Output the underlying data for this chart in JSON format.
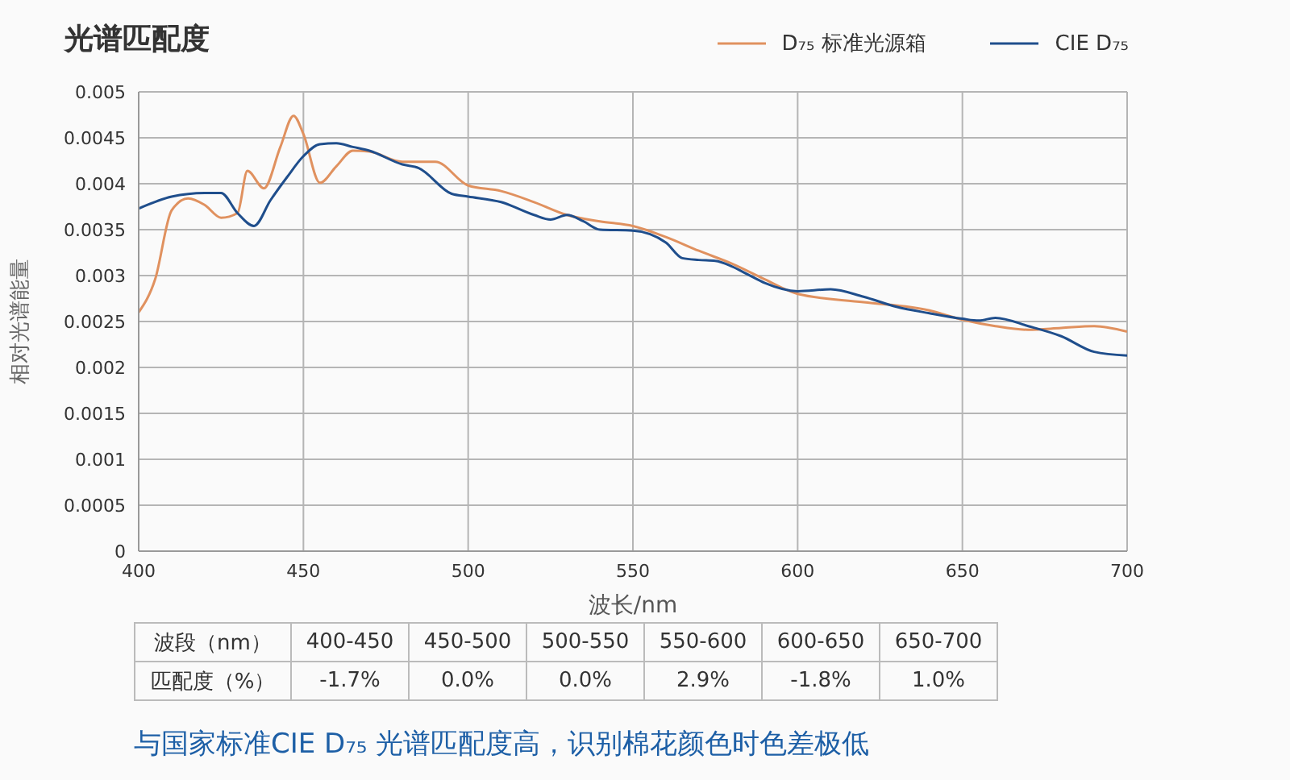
{
  "chart_data": {
    "type": "line",
    "title": "光谱匹配度",
    "xlabel": "波长/nm",
    "ylabel": "相对光谱能量",
    "xlim": [
      400,
      700
    ],
    "xticks": [
      400,
      450,
      500,
      550,
      600,
      650,
      700
    ],
    "ylim": [
      0,
      0.005
    ],
    "yticks": [
      0,
      0.0005,
      0.001,
      0.0015,
      0.002,
      0.0025,
      0.003,
      0.0035,
      0.004,
      0.0045,
      0.005
    ],
    "grid": true,
    "legend": "top right",
    "marker": "none",
    "line_style": "solid",
    "series": [
      {
        "name": "D₇₅ 标准光源箱",
        "color": "#e0915f",
        "x": [
          400,
          405,
          410,
          415,
          420,
          425,
          430,
          433,
          438,
          443,
          447,
          450,
          455,
          460,
          465,
          470,
          480,
          490,
          500,
          510,
          520,
          530,
          540,
          550,
          560,
          570,
          580,
          590,
          600,
          620,
          640,
          650,
          660,
          670,
          680,
          690,
          700
        ],
        "values": [
          0.0026,
          0.00296,
          0.00371,
          0.00384,
          0.00377,
          0.00363,
          0.00368,
          0.00414,
          0.00395,
          0.0044,
          0.00474,
          0.00454,
          0.00401,
          0.00419,
          0.00436,
          0.00435,
          0.00424,
          0.00424,
          0.00398,
          0.00392,
          0.0038,
          0.00366,
          0.00359,
          0.00354,
          0.00342,
          0.00327,
          0.00313,
          0.00296,
          0.0028,
          0.00271,
          0.00262,
          0.00252,
          0.00245,
          0.00241,
          0.00243,
          0.00245,
          0.00239
        ]
      },
      {
        "name": "CIE D₇₅",
        "color": "#1f4e8c",
        "x": [
          400,
          410,
          420,
          425,
          430,
          435,
          440,
          445,
          450,
          455,
          460,
          465,
          470,
          480,
          485,
          495,
          500,
          510,
          520,
          525,
          530,
          535,
          540,
          550,
          560,
          565,
          570,
          575,
          580,
          585,
          590,
          600,
          610,
          620,
          630,
          640,
          650,
          655,
          660,
          670,
          680,
          690,
          700
        ],
        "values": [
          0.00373,
          0.00386,
          0.0039,
          0.0039,
          0.00368,
          0.00354,
          0.00382,
          0.00407,
          0.0043,
          0.00443,
          0.00444,
          0.0044,
          0.00436,
          0.00421,
          0.00417,
          0.00389,
          0.00386,
          0.0038,
          0.00366,
          0.00361,
          0.00366,
          0.00359,
          0.0035,
          0.00349,
          0.00336,
          0.00319,
          0.00317,
          0.00316,
          0.0031,
          0.00301,
          0.00292,
          0.00283,
          0.00285,
          0.00277,
          0.00266,
          0.00259,
          0.00253,
          0.00251,
          0.00254,
          0.00245,
          0.00234,
          0.00217,
          0.00213
        ]
      }
    ],
    "annotations": [
      "波段（nm）",
      "400-450",
      "450-500",
      "500-550",
      "550-600",
      "600-650",
      "650-700",
      "匹配度（%）",
      "-1.7%",
      "0.0%",
      "0.0%",
      "2.9%",
      "-1.8%",
      "1.0%",
      "与国家标准CIE D₇₅ 光谱匹配度高，识别棉花颜色时色差极低"
    ]
  }
}
